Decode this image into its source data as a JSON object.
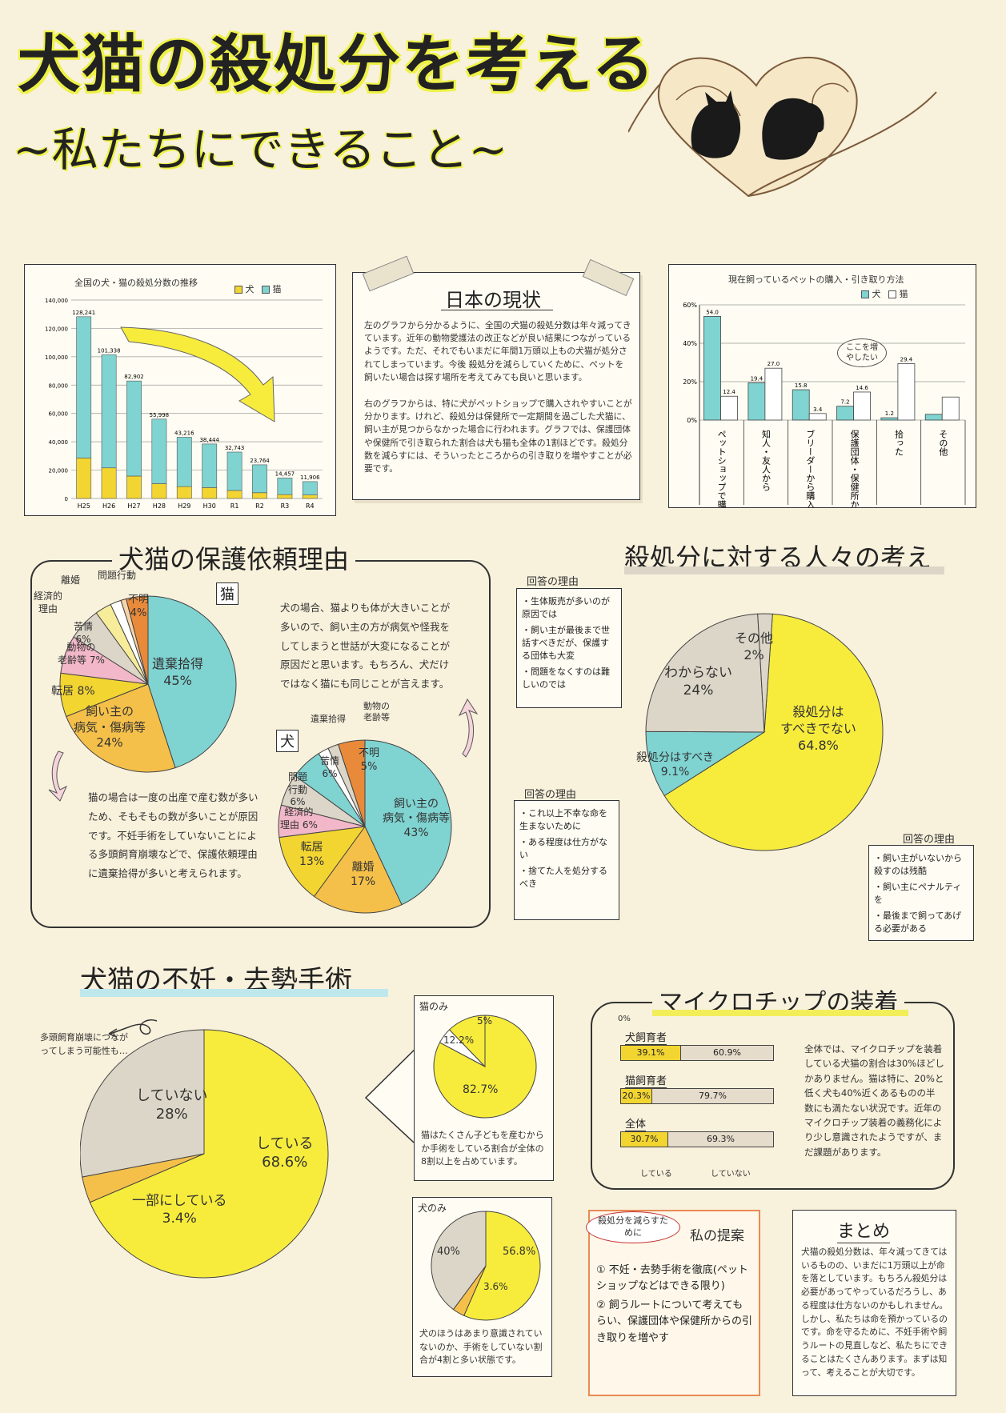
{
  "poster": {
    "title": "犬猫の殺処分を考える",
    "subtitle": "~私たちにできること~"
  },
  "colors": {
    "dog": "#f3d532",
    "cat": "#7fd3d1",
    "gray": "#dcd6c8",
    "pink": "#f2b7c8",
    "orange": "#f0a24a",
    "yellow": "#f7ec3c",
    "beige": "#e6dccb"
  },
  "trend_chart": {
    "title": "全国の犬・猫の殺処分数の推移",
    "legend_dog": "犬",
    "legend_cat": "猫",
    "chart_data": {
      "type": "bar",
      "categories": [
        "H25",
        "H26",
        "H27",
        "H28",
        "H29",
        "H30",
        "R1",
        "R2",
        "R3",
        "R4"
      ],
      "totals": [
        128241,
        101338,
        82902,
        55998,
        43216,
        38444,
        32743,
        23764,
        14457,
        11906
      ],
      "total_labels": [
        "128,241",
        "101,338",
        "82,902",
        "55,998",
        "43,216",
        "38,444",
        "32,743",
        "23,764",
        "14,457",
        "11,906"
      ],
      "series": [
        {
          "name": "犬",
          "values": [
            28570,
            21593,
            15811,
            10424,
            8362,
            7687,
            5635,
            4059,
            2739,
            2434
          ]
        },
        {
          "name": "猫",
          "values": [
            99671,
            79745,
            67091,
            45574,
            34854,
            30757,
            27108,
            19705,
            11718,
            9472
          ]
        }
      ],
      "yticks": [
        "0",
        "20,000",
        "40,000",
        "60,000",
        "80,000",
        "100,000",
        "120,000",
        "140,000"
      ],
      "ylim": [
        0,
        140000
      ]
    }
  },
  "current": {
    "title": "日本の現状",
    "paragraph1": "左のグラフから分かるように、全国の犬猫の殺処分数は年々減ってきています。近年の動物愛護法の改正などが良い結果につながっているようです。ただ、それでもいまだに年間1万頭以上もの犬猫が処分されてしまっています。今後 殺処分を減らしていくために、ペットを飼いたい場合は探す場所を考えてみても良いと思います。",
    "paragraph2": "右のグラフからは、特に犬がペットショップで購入されやすいことが分かります。けれど、殺処分は保健所で一定期間を過ごした犬猫に、飼い主が見つからなかった場合に行われます。グラフでは、保護団体や保健所で引き取られた割合は犬も猫も全体の1割ほどです。殺処分数を減らすには、そういったところからの引き取りを増やすことが必要です。"
  },
  "acquisition_chart": {
    "title": "現在飼っているペットの購入・引き取り方法",
    "legend_dog": "犬",
    "legend_cat": "猫",
    "callout": "ここを増やしたい",
    "chart_data": {
      "type": "bar",
      "categories": [
        "ペットショップで購入",
        "知人・友人から",
        "ブリーダーから購入",
        "保護団体・保健所から",
        "拾った",
        "その他"
      ],
      "series": [
        {
          "name": "犬",
          "values": [
            54.0,
            19.4,
            15.8,
            7.2,
            1.2,
            3.0
          ]
        },
        {
          "name": "猫",
          "values": [
            12.4,
            27.0,
            3.4,
            14.6,
            29.4,
            12.0
          ]
        }
      ],
      "value_labels_dog": [
        "54.0",
        "19.4",
        "15.8",
        "7.2",
        "1.2",
        ""
      ],
      "value_labels_cat": [
        "12.4",
        "27.0",
        "3.4",
        "14.6",
        "29.4",
        ""
      ],
      "yticks": [
        "0%",
        "20%",
        "40%",
        "60%"
      ],
      "ylim": [
        0,
        60
      ]
    }
  },
  "protection": {
    "title": "犬猫の保護依頼理由",
    "cat_tag": "猫",
    "dog_tag": "犬",
    "cat_chart": {
      "type": "pie",
      "slices": [
        {
          "label": "遺棄拾得",
          "value": 45
        },
        {
          "label": "飼い主の病気・傷病等",
          "value": 24
        },
        {
          "label": "転居",
          "value": 8
        },
        {
          "label": "動物の老齢等",
          "value": 7
        },
        {
          "label": "苦情",
          "value": 6
        },
        {
          "label": "経済的理由",
          "value": 3
        },
        {
          "label": "離婚",
          "value": 2
        },
        {
          "label": "問題行動",
          "value": 1
        },
        {
          "label": "不明",
          "value": 4
        }
      ]
    },
    "dog_chart": {
      "type": "pie",
      "slices": [
        {
          "label": "飼い主の病気・傷病等",
          "value": 43
        },
        {
          "label": "離婚",
          "value": 17
        },
        {
          "label": "転居",
          "value": 13
        },
        {
          "label": "経済的理由",
          "value": 6
        },
        {
          "label": "問題行動",
          "value": 6
        },
        {
          "label": "苦情",
          "value": 6
        },
        {
          "label": "遺棄拾得",
          "value": 2
        },
        {
          "label": "動物の老齢等",
          "value": 2
        },
        {
          "label": "不明",
          "value": 5
        }
      ]
    },
    "cat_labels": {
      "iki": "遺棄拾得",
      "iki_v": "45%",
      "kainushi": "飼い主の\n病気・傷病等\n24%",
      "tenkyo": "転居 8%",
      "rourei": "動物の\n老齢等 7%",
      "kujo": "苦情\n6%",
      "keizai": "経済的\n理由",
      "rikon": "離婚",
      "mondai": "問題行動",
      "fumei": "不明\n4%"
    },
    "dog_labels": {
      "kainushi": "飼い主の\n病気・傷病等\n43%",
      "rikon": "離婚\n17%",
      "tenkyo": "転居\n13%",
      "keizai": "経済的\n理由 6%",
      "mondai": "問題\n行動\n6%",
      "kujo": "苦情\n6%",
      "iki": "遺棄拾得",
      "rourei": "動物の\n老齢等",
      "fumei": "不明\n5%"
    },
    "dog_note": "犬の場合、猫よりも体が大きいことが多いので、飼い主の方が病気や怪我をしてしまうと世話が大変になることが原因だと思います。もちろん、犬だけではなく猫にも同じことが言えます。",
    "cat_note": "猫の場合は一度の出産で産む数が多いため、そもそもの数が多いことが原因です。不妊手術をしていないことによる多頭飼育崩壊などで、保護依頼理由に遺棄拾得が多いと考えられます。"
  },
  "opinion": {
    "title": "殺処分に対する人々の考え",
    "chart": {
      "type": "pie",
      "slices": [
        {
          "label": "殺処分はすべきでない",
          "value": 64.8
        },
        {
          "label": "殺処分はすべき",
          "value": 9.1
        },
        {
          "label": "わからない",
          "value": 24
        },
        {
          "label": "その他",
          "value": 2
        }
      ]
    },
    "labels": {
      "nashi": "殺処分は\nすべきでない\n64.8%",
      "beki": "殺処分はすべき\n9.1%",
      "wakaranai": "わからない\n24%",
      "sonota": "その他\n2%"
    },
    "reason_title": "回答の理由",
    "reasons_wakaranai": [
      "生体販売が多いのが原因では",
      "飼い主が最後まで世話すべきだが、保護する団体も大変",
      "問題をなくすのは難しいのでは"
    ],
    "reasons_beki": [
      "これ以上不幸な命を生まないために",
      "ある程度は仕方がない",
      "捨てた人を処分するべき"
    ],
    "reasons_nashi": [
      "飼い主がいないから殺すのは残酷",
      "飼い主にペナルティを",
      "最後まで飼ってあげる必要がある"
    ]
  },
  "surgery": {
    "title": "犬猫の不妊・去勢手術",
    "note": "多頭飼育崩壊につながってしまう可能性も…",
    "main_chart": {
      "type": "pie",
      "slices": [
        {
          "label": "している",
          "value": 68.6
        },
        {
          "label": "一部にしている",
          "value": 3.4
        },
        {
          "label": "していない",
          "value": 28
        }
      ]
    },
    "main_labels": {
      "shiteiru": "している\n68.6%",
      "ichibu": "一部にしている\n3.4%",
      "shiteinai": "していない\n28%"
    },
    "cat_title": "猫のみ",
    "cat_chart": {
      "type": "pie",
      "slices": [
        {
          "label": "している",
          "value": 82.7
        },
        {
          "label": "一部",
          "value": 5
        },
        {
          "label": "していない",
          "value": 12.2
        }
      ]
    },
    "cat_labels": {
      "a": "82.7%",
      "b": "5%",
      "c": "12.2%"
    },
    "cat_note": "猫はたくさん子どもを産むからか手術をしている割合が全体の8割以上を占めています。",
    "dog_title": "犬のみ",
    "dog_chart": {
      "type": "pie",
      "slices": [
        {
          "label": "している",
          "value": 56.8
        },
        {
          "label": "一部",
          "value": 3.6
        },
        {
          "label": "していない",
          "value": 40
        }
      ]
    },
    "dog_labels": {
      "a": "56.8%",
      "b": "3.6%",
      "c": "40%"
    },
    "dog_note": "犬のほうはあまり意識されていないのか、手術をしていない割合が4割と多い状態です。"
  },
  "microchip": {
    "title": "マイクロチップの装着",
    "zero": "0%",
    "rows": [
      {
        "label": "犬飼育者",
        "yes": 39.1,
        "yes_label": "39.1%",
        "no_label": "60.9%"
      },
      {
        "label": "猫飼育者",
        "yes": 20.3,
        "yes_label": "20.3%",
        "no_label": "79.7%"
      },
      {
        "label": "全体",
        "yes": 30.7,
        "yes_label": "30.7%",
        "no_label": "69.3%"
      }
    ],
    "axis_yes": "している",
    "axis_no": "していない",
    "note": "全体では、マイクロチップを装着している犬猫の割合は30%ほどしかありません。猫は特に、20%と低く犬も40%近くあるものの半数にも満たない状況です。近年のマイクロチップ装着の義務化により少し意識されたようですが、まだ課題があります。"
  },
  "proposal": {
    "bubble": "殺処分を減らすために",
    "title": "私の提案",
    "items": [
      "① 不妊・去勢手術を徹底(ペットショップなどはできる限り)",
      "② 飼うルートについて考えてもらい、保護団体や保健所からの引き取りを増やす"
    ]
  },
  "summary": {
    "title": "まとめ",
    "text": "犬猫の殺処分数は、年々減ってきてはいるものの、いまだに1万頭以上が命を落としています。もちろん殺処分は必要があってやっているだろうし、ある程度は仕方ないのかもしれません。しかし、私たちは命を預かっているのです。命を守るために、不妊手術や飼うルートの見直しなど、私たちにできることはたくさんあります。まずは知って、考えることが大切です。"
  }
}
